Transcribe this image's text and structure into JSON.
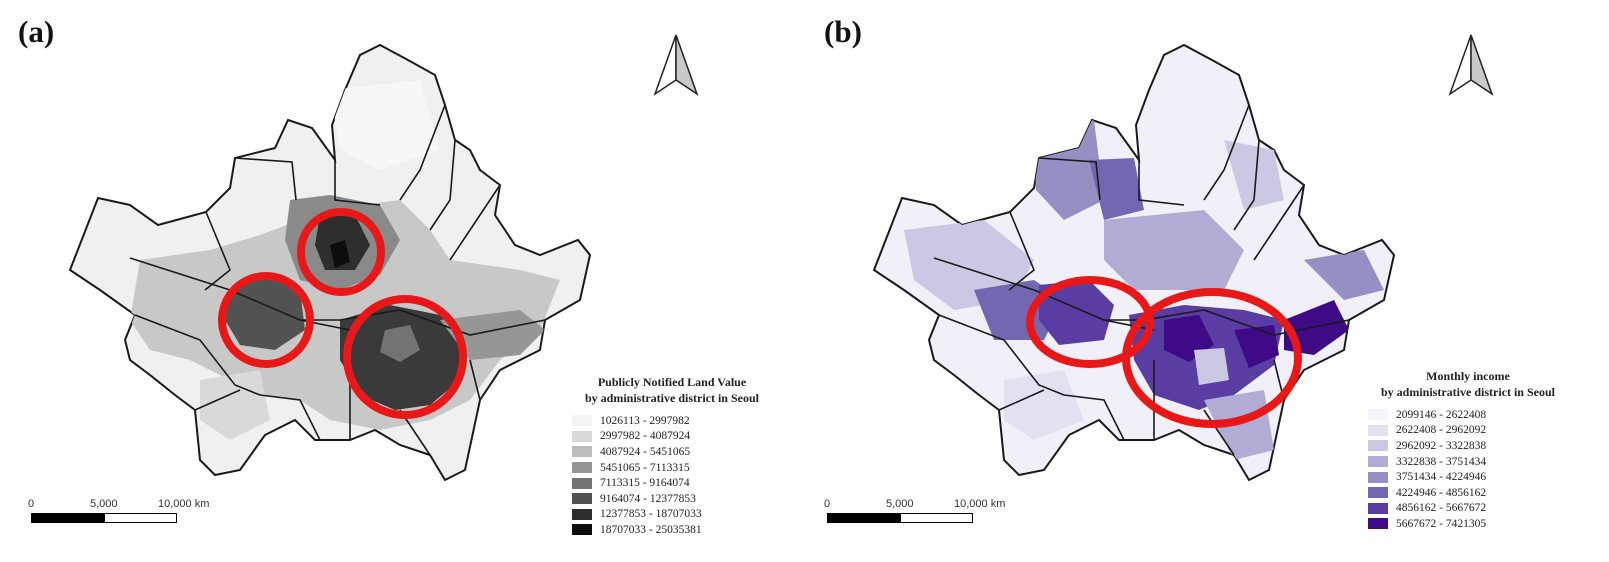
{
  "panels": [
    {
      "label": "(a)",
      "legend": {
        "title_line1": "Publicly Notified Land Value",
        "title_line2": "by administrative district in Seoul",
        "classes": [
          {
            "range": "1026113 - 2997982",
            "color": "#f4f4f4"
          },
          {
            "range": "2997982 - 4087924",
            "color": "#d9d9d9"
          },
          {
            "range": "4087924 - 5451065",
            "color": "#bdbdbd"
          },
          {
            "range": "5451065 - 7113315",
            "color": "#969696"
          },
          {
            "range": "7113315 - 9164074",
            "color": "#737373"
          },
          {
            "range": "9164074 - 12377853",
            "color": "#525252"
          },
          {
            "range": "12377853 - 18707033",
            "color": "#2e2e2e"
          },
          {
            "range": "18707033 - 25035381",
            "color": "#0d0d0d"
          }
        ]
      },
      "scale": {
        "ticks": [
          "0",
          "5,000",
          "10,000 km"
        ]
      },
      "fill_base": "#f0f0f0",
      "fill_mid": "#c8c8c8",
      "fill_dark": "#8a8a8a",
      "highlight_color": "#e81818",
      "north_arrow": "north-arrow-icon"
    },
    {
      "label": "(b)",
      "legend": {
        "title_line1": "Monthly income",
        "title_line2": "by administrative district in Seoul",
        "classes": [
          {
            "range": "2099146 - 2622408",
            "color": "#f6f5fb"
          },
          {
            "range": "2622408 - 2962092",
            "color": "#e3e1f0"
          },
          {
            "range": "2962092 - 3322838",
            "color": "#cbc8e3"
          },
          {
            "range": "3322838 - 3751434",
            "color": "#b1acd4"
          },
          {
            "range": "3751434 - 4224946",
            "color": "#9590c4"
          },
          {
            "range": "4224946 - 4856162",
            "color": "#7467b2"
          },
          {
            "range": "4856162 - 5667672",
            "color": "#5a3da3"
          },
          {
            "range": "5667672 - 7421305",
            "color": "#3f0a86"
          }
        ]
      },
      "scale": {
        "ticks": [
          "0",
          "5,000",
          "10,000 km"
        ]
      },
      "fill_base": "#f1f0f8",
      "fill_mid": "#c6c2e0",
      "fill_dark": "#6e5fae",
      "highlight_color": "#e81818",
      "north_arrow": "north-arrow-icon"
    }
  ]
}
